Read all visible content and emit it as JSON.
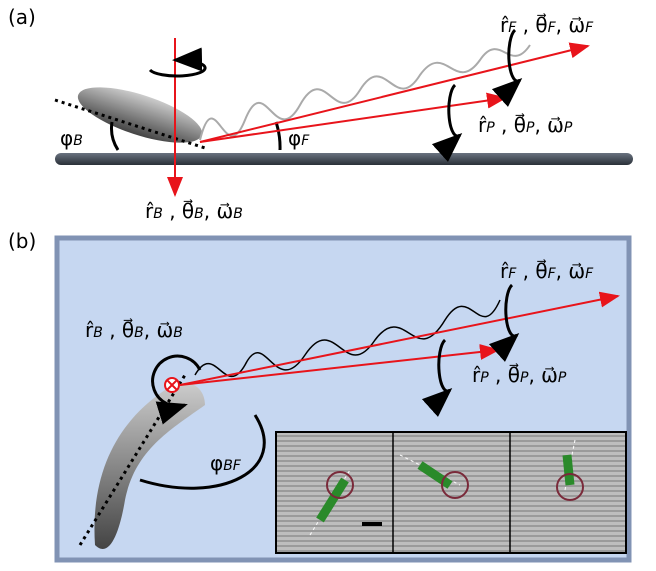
{
  "panel_a": {
    "tag": "(a)",
    "labels": [
      [
        "r̂",
        "F",
        " , θ⃗",
        "F",
        ", ω⃗",
        "F"
      ],
      [
        "r̂",
        "P",
        " , θ⃗",
        "P",
        ", ω⃗",
        "P"
      ],
      [
        "r̂",
        "B",
        " , θ⃗",
        "B",
        ", ω⃗",
        "B"
      ]
    ],
    "angles": [
      [
        "φ",
        "B"
      ],
      [
        "φ",
        "F"
      ]
    ]
  },
  "panel_b": {
    "tag": "(b)",
    "labels": [
      [
        "r̂",
        "F",
        " , θ⃗",
        "F",
        ", ω⃗",
        "F"
      ],
      [
        "r̂",
        "P",
        " , θ⃗",
        "P",
        ", ω⃗",
        "P"
      ],
      [
        "r̂",
        "B",
        " , θ⃗",
        "B",
        ", ω⃗",
        "B"
      ]
    ],
    "angles": [
      [
        "φ",
        "BF"
      ]
    ]
  }
}
